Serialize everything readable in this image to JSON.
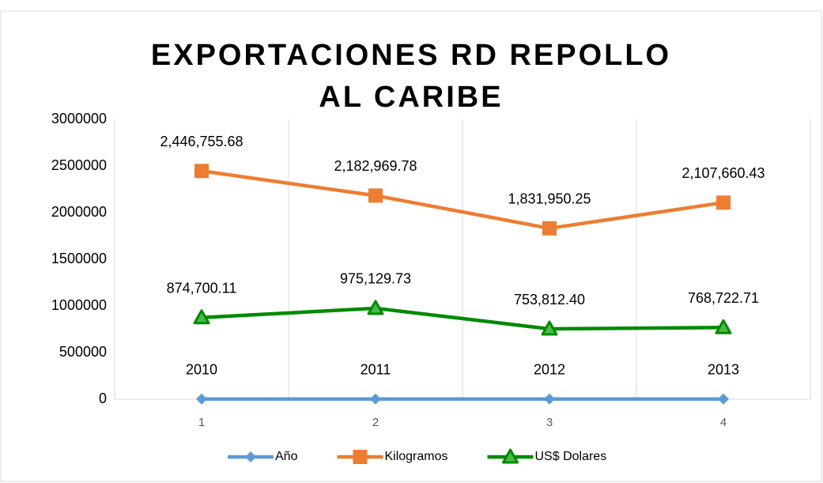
{
  "chart_data": {
    "type": "line",
    "title": "EXPORTACIONES RD REPOLLO AL CARIBE",
    "categories": [
      "1",
      "2",
      "3",
      "4"
    ],
    "series": [
      {
        "name": "Año",
        "color": "#5b9bd5",
        "marker": "diamond",
        "values": [
          2010,
          2011,
          2012,
          2013
        ]
      },
      {
        "name": "Kilogramos",
        "color": "#ed7d31",
        "marker": "square",
        "values": [
          2446755.68,
          2182969.78,
          1831950.25,
          2107660.43
        ],
        "value_labels": [
          "2,446,755.68",
          "2,182,969.78",
          "1,831,950.25",
          "2,107,660.43"
        ]
      },
      {
        "name": "US$ Dolares",
        "color": "#008a00",
        "marker": "triangle",
        "values": [
          874700.11,
          975129.73,
          753812.4,
          768722.71
        ],
        "value_labels": [
          "874,700.11",
          "975,129.73",
          "753,812.40",
          "768,722.71"
        ]
      }
    ],
    "ylim": [
      0,
      3000000
    ],
    "yticks": [
      0,
      500000,
      1000000,
      1500000,
      2000000,
      2500000,
      3000000
    ],
    "grid": "x",
    "legend": "bottom"
  }
}
